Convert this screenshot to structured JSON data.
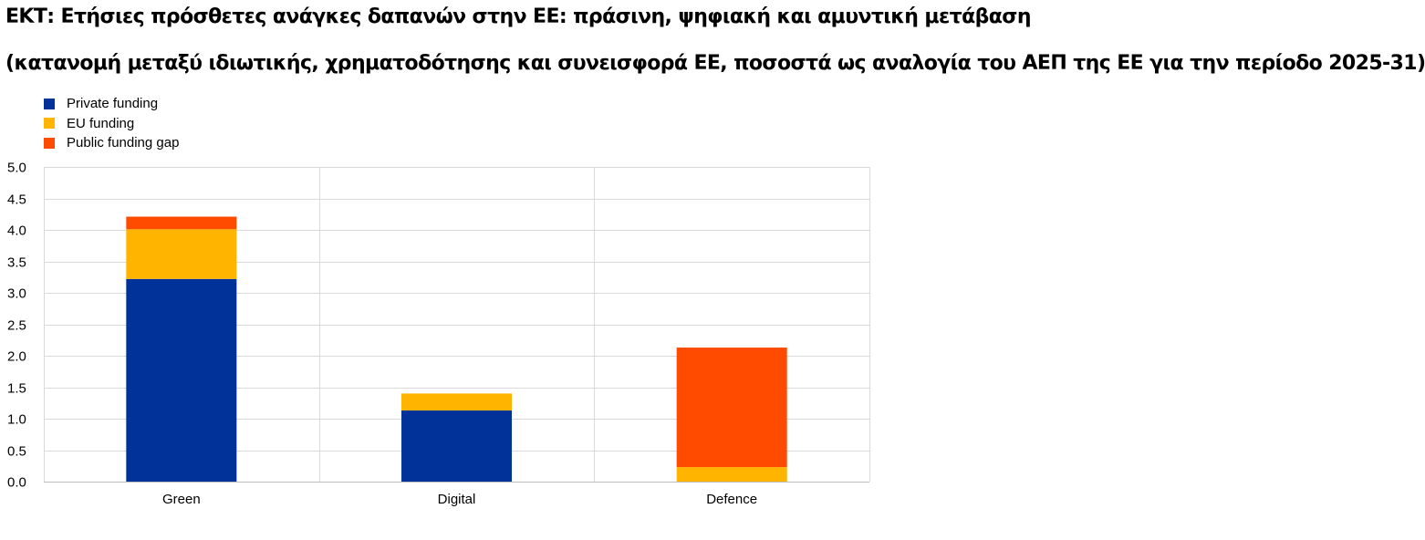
{
  "titles": {
    "line1": "ΕΚΤ: Ετήσιες πρόσθετες ανάγκες δαπανών στην ΕΕ: πράσινη, ψηφιακή και αμυντική μετάβαση",
    "line2": "(κατανομή μεταξύ ιδιωτικής, χρηματοδότησης και συνεισφορά ΕΕ, ποσοστά ως αναλογία του ΑΕΠ της ΕΕ για την περίοδο 2025-31)"
  },
  "chart_data": {
    "type": "bar",
    "stacked": true,
    "categories": [
      "Green",
      "Digital",
      "Defence"
    ],
    "series": [
      {
        "name": "Private funding",
        "color": "#003299",
        "values": [
          3.22,
          1.13,
          0.0
        ]
      },
      {
        "name": "EU funding",
        "color": "#ffb400",
        "values": [
          0.79,
          0.27,
          0.23
        ]
      },
      {
        "name": "Public funding gap",
        "color": "#ff4b00",
        "values": [
          0.2,
          0.0,
          1.9
        ]
      }
    ],
    "ylim": [
      0,
      5
    ],
    "yticks": [
      "0.0",
      "0.5",
      "1.0",
      "1.5",
      "2.0",
      "2.5",
      "3.0",
      "3.5",
      "4.0",
      "4.5",
      "5.0"
    ],
    "grid": true,
    "legend_position": "top-left"
  }
}
